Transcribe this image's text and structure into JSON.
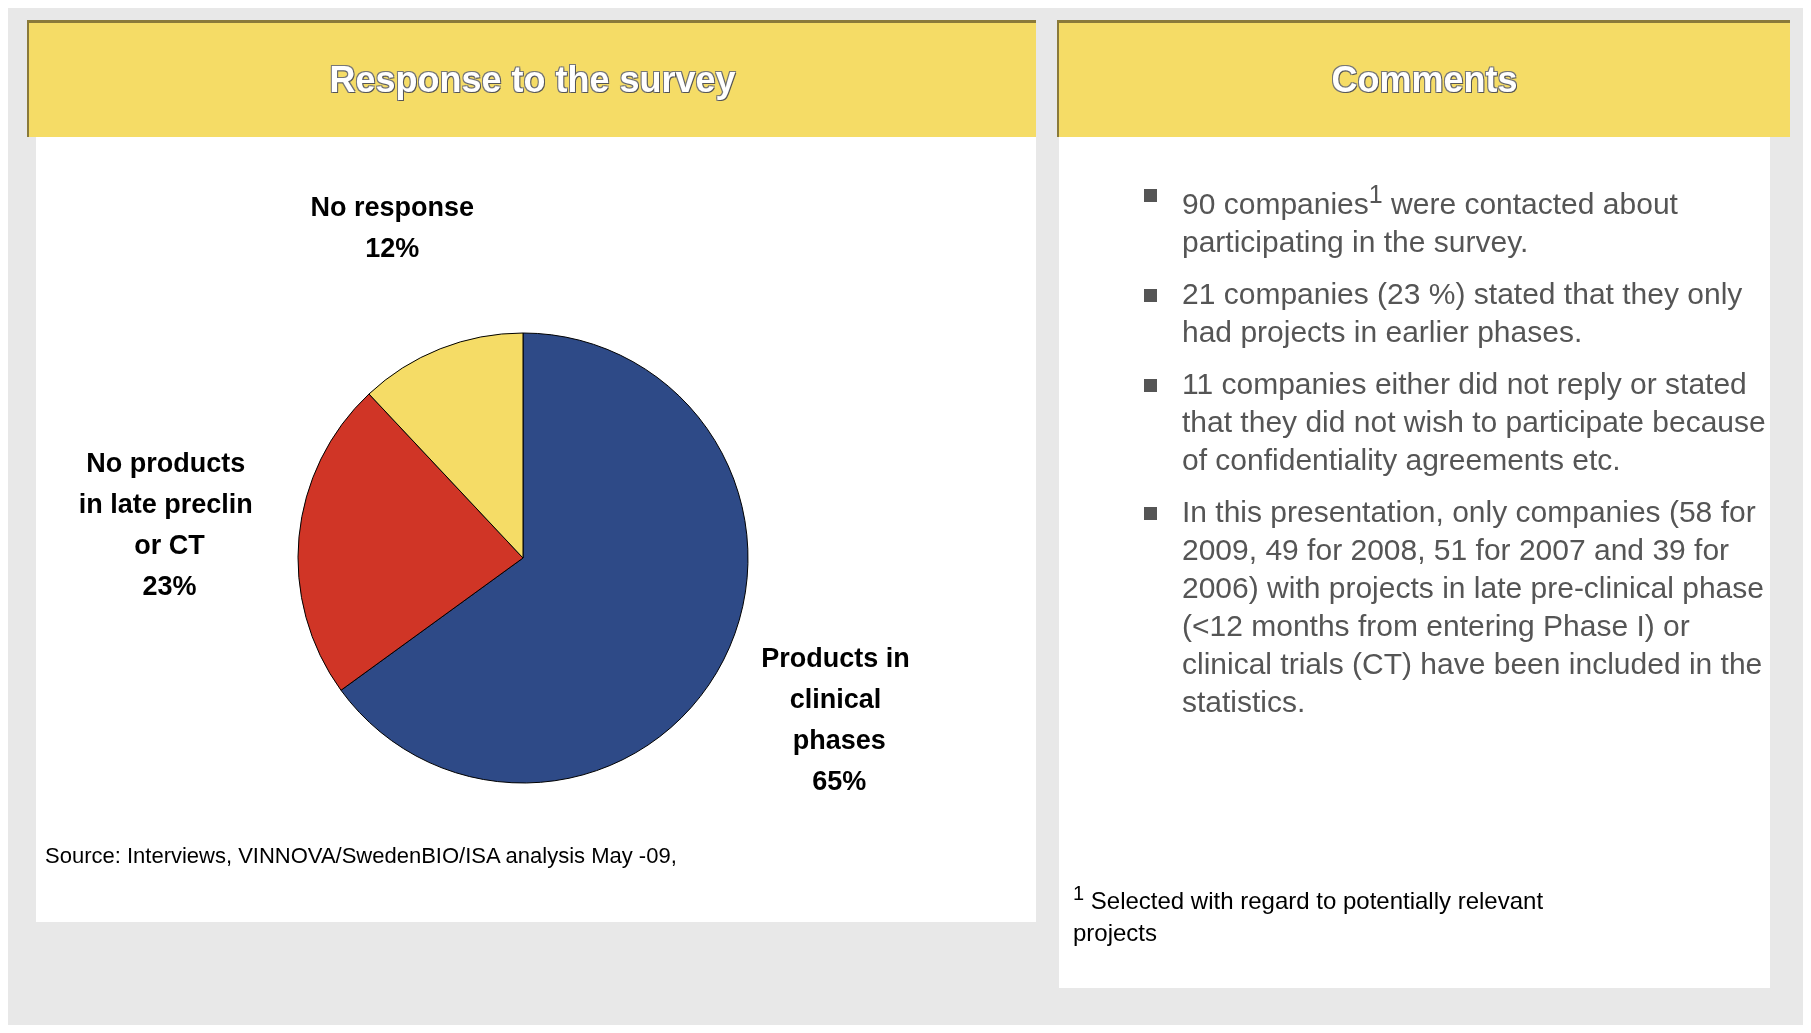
{
  "chart_data": [
    {
      "type": "pie",
      "title": "Response to the survey",
      "categories": [
        "Products in clinical phases",
        "No products in late preclin or CT",
        "No response"
      ],
      "values": [
        65,
        23,
        12
      ],
      "value_labels": [
        "65%",
        "23%",
        "12%"
      ],
      "colors": [
        "#2e4a87",
        "#d03526",
        "#f5dc66"
      ],
      "annotations": [
        "Source: Interviews, VINNOVA/SwedenBIO/ISA analysis May -09,"
      ]
    },
    {
      "type": "other",
      "title": "Comments",
      "annotations": [
        "90 companies$^{1}$ were contacted about participating in the survey.",
        "21 companies (23 %) stated that they only had projects in earlier phases.",
        "11 companies either did not reply or stated that they did not wish to participate because of confidentiality agreements etc.",
        "In this presentation, only companies (58 for 2009, 49 for 2008, 51 for 2007 and 39 for 2006) with projects in late pre-clinical phase (<12 months from entering Phase I) or clinical trials (CT) have been included in the statistics.",
        "$^{1}$ Selected with regard to potentially relevant projects"
      ]
    }
  ]
}
